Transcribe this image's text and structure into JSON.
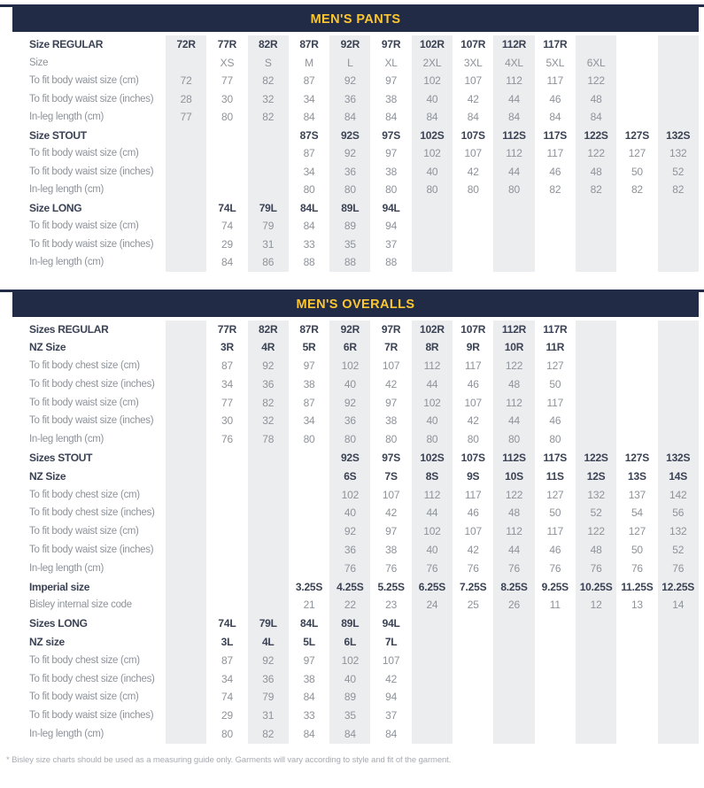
{
  "page": {
    "footnote": "* Bisley size charts should be used as a measuring guide only. Garments will vary according to style and fit of the garment.",
    "colors": {
      "header_bg": "#222B45",
      "header_text": "#FCC62F",
      "band": "#ECEDEF",
      "bold_text": "#3A4254",
      "normal_text": "#8E939A"
    }
  },
  "tables": [
    {
      "title": "MEN'S PANTS",
      "rows": [
        {
          "label": "Size REGULAR",
          "bold": true,
          "cells": [
            "72R",
            "77R",
            "82R",
            "87R",
            "92R",
            "97R",
            "102R",
            "107R",
            "112R",
            "117R",
            "",
            "",
            ""
          ]
        },
        {
          "label": "Size",
          "bold": false,
          "cells": [
            "",
            "XS",
            "S",
            "M",
            "L",
            "XL",
            "2XL",
            "3XL",
            "4XL",
            "5XL",
            "6XL",
            "",
            ""
          ]
        },
        {
          "label": "To fit body waist size (cm)",
          "bold": false,
          "cells": [
            "72",
            "77",
            "82",
            "87",
            "92",
            "97",
            "102",
            "107",
            "112",
            "117",
            "122",
            "",
            ""
          ]
        },
        {
          "label": "To fit body waist size (inches)",
          "bold": false,
          "cells": [
            "28",
            "30",
            "32",
            "34",
            "36",
            "38",
            "40",
            "42",
            "44",
            "46",
            "48",
            "",
            ""
          ]
        },
        {
          "label": "In-leg length (cm)",
          "bold": false,
          "cells": [
            "77",
            "80",
            "82",
            "84",
            "84",
            "84",
            "84",
            "84",
            "84",
            "84",
            "84",
            "",
            ""
          ]
        },
        {
          "label": "Size STOUT",
          "bold": true,
          "cells": [
            "",
            "",
            "",
            "87S",
            "92S",
            "97S",
            "102S",
            "107S",
            "112S",
            "117S",
            "122S",
            "127S",
            "132S"
          ]
        },
        {
          "label": "To fit body waist size (cm)",
          "bold": false,
          "cells": [
            "",
            "",
            "",
            "87",
            "92",
            "97",
            "102",
            "107",
            "112",
            "117",
            "122",
            "127",
            "132"
          ]
        },
        {
          "label": "To fit body waist size (inches)",
          "bold": false,
          "cells": [
            "",
            "",
            "",
            "34",
            "36",
            "38",
            "40",
            "42",
            "44",
            "46",
            "48",
            "50",
            "52"
          ]
        },
        {
          "label": "In-leg length (cm)",
          "bold": false,
          "cells": [
            "",
            "",
            "",
            "80",
            "80",
            "80",
            "80",
            "80",
            "80",
            "82",
            "82",
            "82",
            "82"
          ]
        },
        {
          "label": "Size LONG",
          "bold": true,
          "cells": [
            "",
            "74L",
            "79L",
            "84L",
            "89L",
            "94L",
            "",
            "",
            "",
            "",
            "",
            "",
            ""
          ]
        },
        {
          "label": "To fit body waist size (cm)",
          "bold": false,
          "cells": [
            "",
            "74",
            "79",
            "84",
            "89",
            "94",
            "",
            "",
            "",
            "",
            "",
            "",
            ""
          ]
        },
        {
          "label": "To fit body waist size (inches)",
          "bold": false,
          "cells": [
            "",
            "29",
            "31",
            "33",
            "35",
            "37",
            "",
            "",
            "",
            "",
            "",
            "",
            ""
          ]
        },
        {
          "label": "In-leg length (cm)",
          "bold": false,
          "cells": [
            "",
            "84",
            "86",
            "88",
            "88",
            "88",
            "",
            "",
            "",
            "",
            "",
            "",
            ""
          ]
        }
      ]
    },
    {
      "title": "MEN'S OVERALLS",
      "rows": [
        {
          "label": "Sizes REGULAR",
          "bold": true,
          "cells": [
            "",
            "77R",
            "82R",
            "87R",
            "92R",
            "97R",
            "102R",
            "107R",
            "112R",
            "117R",
            "",
            "",
            ""
          ]
        },
        {
          "label": "NZ Size",
          "bold": true,
          "cells": [
            "",
            "3R",
            "4R",
            "5R",
            "6R",
            "7R",
            "8R",
            "9R",
            "10R",
            "11R",
            "",
            "",
            ""
          ]
        },
        {
          "label": "To fit body chest size (cm)",
          "bold": false,
          "cells": [
            "",
            "87",
            "92",
            "97",
            "102",
            "107",
            "112",
            "117",
            "122",
            "127",
            "",
            "",
            ""
          ]
        },
        {
          "label": "To fit body chest size (inches)",
          "bold": false,
          "cells": [
            "",
            "34",
            "36",
            "38",
            "40",
            "42",
            "44",
            "46",
            "48",
            "50",
            "",
            "",
            ""
          ]
        },
        {
          "label": "To fit body waist size (cm)",
          "bold": false,
          "cells": [
            "",
            "77",
            "82",
            "87",
            "92",
            "97",
            "102",
            "107",
            "112",
            "117",
            "",
            "",
            ""
          ]
        },
        {
          "label": "To fit body waist size (inches)",
          "bold": false,
          "cells": [
            "",
            "30",
            "32",
            "34",
            "36",
            "38",
            "40",
            "42",
            "44",
            "46",
            "",
            "",
            ""
          ]
        },
        {
          "label": "In-leg length (cm)",
          "bold": false,
          "cells": [
            "",
            "76",
            "78",
            "80",
            "80",
            "80",
            "80",
            "80",
            "80",
            "80",
            "",
            "",
            ""
          ]
        },
        {
          "label": "Sizes STOUT",
          "bold": true,
          "cells": [
            "",
            "",
            "",
            "",
            "92S",
            "97S",
            "102S",
            "107S",
            "112S",
            "117S",
            "122S",
            "127S",
            "132S"
          ]
        },
        {
          "label": "NZ Size",
          "bold": true,
          "cells": [
            "",
            "",
            "",
            "",
            "6S",
            "7S",
            "8S",
            "9S",
            "10S",
            "11S",
            "12S",
            "13S",
            "14S"
          ]
        },
        {
          "label": "To fit body chest size (cm)",
          "bold": false,
          "cells": [
            "",
            "",
            "",
            "",
            "102",
            "107",
            "112",
            "117",
            "122",
            "127",
            "132",
            "137",
            "142"
          ]
        },
        {
          "label": "To fit body chest size (inches)",
          "bold": false,
          "cells": [
            "",
            "",
            "",
            "",
            "40",
            "42",
            "44",
            "46",
            "48",
            "50",
            "52",
            "54",
            "56"
          ]
        },
        {
          "label": "To fit body waist size (cm)",
          "bold": false,
          "cells": [
            "",
            "",
            "",
            "",
            "92",
            "97",
            "102",
            "107",
            "112",
            "117",
            "122",
            "127",
            "132"
          ]
        },
        {
          "label": "To fit body waist size (inches)",
          "bold": false,
          "cells": [
            "",
            "",
            "",
            "",
            "36",
            "38",
            "40",
            "42",
            "44",
            "46",
            "48",
            "50",
            "52"
          ]
        },
        {
          "label": "In-leg length (cm)",
          "bold": false,
          "cells": [
            "",
            "",
            "",
            "",
            "76",
            "76",
            "76",
            "76",
            "76",
            "76",
            "76",
            "76",
            "76"
          ]
        },
        {
          "label": "Imperial size",
          "bold": true,
          "cells": [
            "",
            "",
            "",
            "3.25S",
            "4.25S",
            "5.25S",
            "6.25S",
            "7.25S",
            "8.25S",
            "9.25S",
            "10.25S",
            "11.25S",
            "12.25S"
          ]
        },
        {
          "label": "Bisley internal size code",
          "bold": false,
          "cells": [
            "",
            "",
            "",
            "21",
            "22",
            "23",
            "24",
            "25",
            "26",
            "11",
            "12",
            "13",
            "14"
          ]
        },
        {
          "label": "Sizes LONG",
          "bold": true,
          "cells": [
            "",
            "74L",
            "79L",
            "84L",
            "89L",
            "94L",
            "",
            "",
            "",
            "",
            "",
            "",
            ""
          ]
        },
        {
          "label": "NZ size",
          "bold": true,
          "cells": [
            "",
            "3L",
            "4L",
            "5L",
            "6L",
            "7L",
            "",
            "",
            "",
            "",
            "",
            "",
            ""
          ]
        },
        {
          "label": "To fit body chest size (cm)",
          "bold": false,
          "cells": [
            "",
            "87",
            "92",
            "97",
            "102",
            "107",
            "",
            "",
            "",
            "",
            "",
            "",
            ""
          ]
        },
        {
          "label": "To fit body chest size (inches)",
          "bold": false,
          "cells": [
            "",
            "34",
            "36",
            "38",
            "40",
            "42",
            "",
            "",
            "",
            "",
            "",
            "",
            ""
          ]
        },
        {
          "label": "To fit body waist size (cm)",
          "bold": false,
          "cells": [
            "",
            "74",
            "79",
            "84",
            "89",
            "94",
            "",
            "",
            "",
            "",
            "",
            "",
            ""
          ]
        },
        {
          "label": "To fit body waist size (inches)",
          "bold": false,
          "cells": [
            "",
            "29",
            "31",
            "33",
            "35",
            "37",
            "",
            "",
            "",
            "",
            "",
            "",
            ""
          ]
        },
        {
          "label": "In-leg length (cm)",
          "bold": false,
          "cells": [
            "",
            "80",
            "82",
            "84",
            "84",
            "84",
            "",
            "",
            "",
            "",
            "",
            "",
            ""
          ]
        }
      ]
    }
  ]
}
